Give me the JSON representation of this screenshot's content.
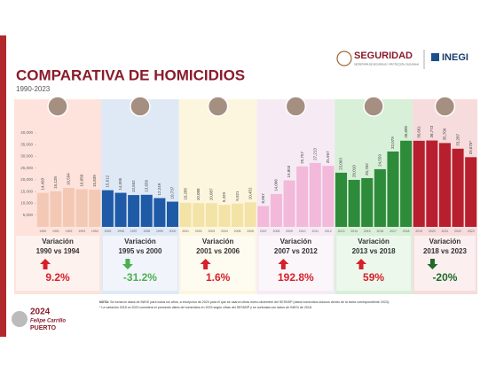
{
  "header": {
    "agency": "SEGURIDAD",
    "agency_subtitle": "SECRETARÍA DE SEGURIDAD Y PROTECCIÓN CIUDADANA",
    "institute": "INEGI"
  },
  "chart_data": {
    "type": "bar",
    "title": "COMPARATIVA DE HOMICIDIOS",
    "subtitle": "1990-2023",
    "ylim": [
      0,
      40000
    ],
    "yticks": [
      {
        "value": 5000,
        "label": "5,000"
      },
      {
        "value": 10000,
        "label": "10,000"
      },
      {
        "value": 15000,
        "label": "15,000"
      },
      {
        "value": 20000,
        "label": "20,000"
      },
      {
        "value": 25000,
        "label": "25,000"
      },
      {
        "value": 30000,
        "label": "30,000"
      },
      {
        "value": 35000,
        "label": "35,000"
      },
      {
        "value": 40000,
        "label": "40,000"
      }
    ],
    "groups": [
      {
        "color": "#f3c9b6",
        "band": "#fde3dc",
        "categories": [
          "1990",
          "1991",
          "1992",
          "1993",
          "1994"
        ],
        "values": [
          14493,
          15128,
          16594,
          16050,
          15839
        ],
        "value_labels": [
          "14,493",
          "15,128",
          "16,594",
          "16,050",
          "15,839"
        ],
        "variation": {
          "title": "Variación",
          "range": "1990 vs 1994",
          "change": "9.2%",
          "direction": "up",
          "color": "#d6202a"
        }
      },
      {
        "color": "#1f5aa6",
        "band": "#dfe9f6",
        "categories": [
          "1995",
          "1996",
          "1997",
          "1998",
          "1999",
          "2000"
        ],
        "values": [
          15612,
          14505,
          13552,
          13656,
          12249,
          10737
        ],
        "value_labels": [
          "15,612",
          "14,505",
          "13,552",
          "13,656",
          "12,249",
          "10,737"
        ],
        "variation": {
          "title": "Variación",
          "range": "1995 vs 2000",
          "change": "-31.2%",
          "direction": "down",
          "color": "#4caf50"
        }
      },
      {
        "color": "#f3e3a6",
        "band": "#fdf6df",
        "categories": [
          "2001",
          "2002",
          "2003",
          "2004",
          "2005",
          "2006"
        ],
        "values": [
          10285,
          10088,
          10087,
          9329,
          9921,
          10452
        ],
        "value_labels": [
          "10,285",
          "10,088",
          "10,087",
          "9,329",
          "9,921",
          "10,452"
        ],
        "variation": {
          "title": "Variación",
          "range": "2001 vs 2006",
          "change": "1.6%",
          "direction": "up",
          "color": "#d6202a"
        }
      },
      {
        "color": "#f2b9db",
        "band": "#f6ebf4",
        "categories": [
          "2007",
          "2008",
          "2009",
          "2010",
          "2011",
          "2012"
        ],
        "values": [
          8867,
          14006,
          19803,
          25757,
          27213,
          25967
        ],
        "value_labels": [
          "8,867",
          "14,006",
          "19,803",
          "25,757",
          "27,213",
          "25,967"
        ],
        "variation": {
          "title": "Variación",
          "range": "2007 vs 2012",
          "change": "192.8%",
          "direction": "up",
          "color": "#d6202a"
        }
      },
      {
        "color": "#2e8b3a",
        "band": "#d8efd8",
        "categories": [
          "2013",
          "2014",
          "2015",
          "2016",
          "2017",
          "2018"
        ],
        "values": [
          23063,
          20010,
          20762,
          24559,
          32079,
          36685
        ],
        "value_labels": [
          "23,063",
          "20,010",
          "20,762",
          "24,559",
          "32,079",
          "36,685"
        ],
        "variation": {
          "title": "Variación",
          "range": "2013 vs 2018",
          "change": "59%",
          "direction": "up",
          "color": "#d6202a"
        }
      },
      {
        "color": "#b81f2e",
        "band": "#f6dcdc",
        "categories": [
          "2019",
          "2020",
          "2021",
          "2022",
          "2023"
        ],
        "values": [
          36661,
          36773,
          35700,
          33287,
          29675
        ],
        "value_labels": [
          "36,661",
          "36,773",
          "35,700",
          "33,287",
          "29,675*"
        ],
        "variation": {
          "title": "Variación",
          "range": "2018 vs 2023",
          "change": "-20%",
          "direction": "down",
          "color": "#1e6b2a"
        }
      }
    ]
  },
  "footer": {
    "logo_year": "2024",
    "logo_name": "Felipe Carrillo",
    "logo_name2": "PUERTO",
    "note_lead": "NOTA:",
    "note_line1": "Se tomaron datos de INEGI para todos los años, a excepción de 2023 para el que se usaron cifras enero-diciembre del SESNSP (datos homicidios dolosos dentro de la barra correspondiente 2023).",
    "note_line2": "* La variación 2018 vs 2023 considera el promedio diario de homicidios en 2023 según cifras del SESNSP y se contrasta con datos de INEGI de 2018."
  }
}
